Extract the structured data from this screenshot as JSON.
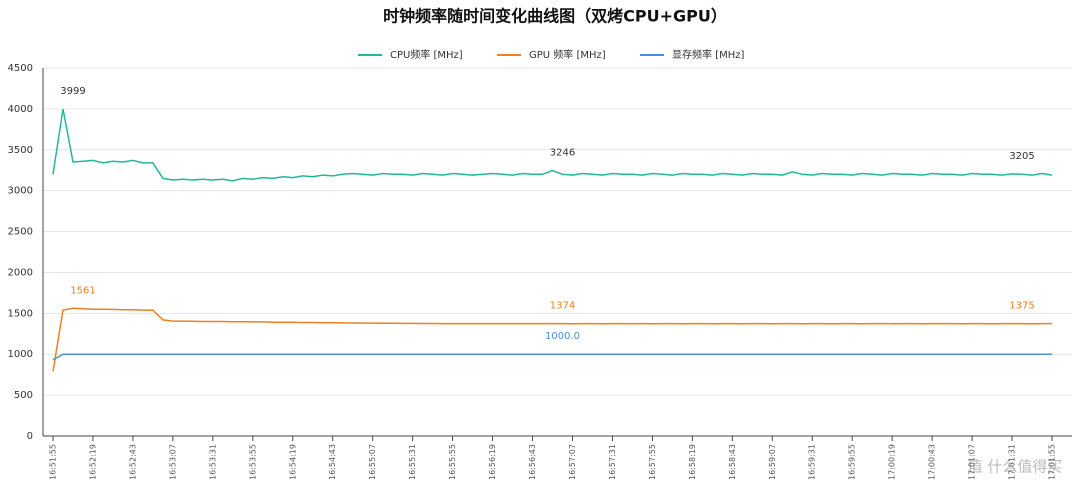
{
  "chart_data": {
    "type": "line",
    "title": "时钟频率随时间变化曲线图（双烤CPU+GPU）",
    "watermark": "值 什么值得买",
    "categories": [
      "16:51:55",
      null,
      null,
      null,
      "16:52:19",
      null,
      null,
      null,
      "16:52:43",
      null,
      null,
      null,
      "16:53:07",
      null,
      null,
      null,
      "16:53:31",
      null,
      null,
      null,
      "16:53:55",
      null,
      null,
      null,
      "16:54:19",
      null,
      null,
      null,
      "16:54:43",
      null,
      null,
      null,
      "16:55:07",
      null,
      null,
      null,
      "16:55:31",
      null,
      null,
      null,
      "16:55:55",
      null,
      null,
      null,
      "16:56:19",
      null,
      null,
      null,
      "16:56:43",
      null,
      null,
      null,
      "16:57:07",
      null,
      null,
      null,
      "16:57:31",
      null,
      null,
      null,
      "16:57:55",
      null,
      null,
      null,
      "16:58:19",
      null,
      null,
      null,
      "16:58:43",
      null,
      null,
      null,
      "16:59:07",
      null,
      null,
      null,
      "16:59:31",
      null,
      null,
      null,
      "16:59:55",
      null,
      null,
      null,
      "17:00:19",
      null,
      null,
      null,
      "17:00:43",
      null,
      null,
      null,
      "17:01:07",
      null,
      null,
      null,
      "17:01:31",
      null,
      null,
      null,
      "17:01:55"
    ],
    "series": [
      {
        "name": "CPU频率 [MHz]",
        "color": "#22b89a",
        "label_color": "#333333",
        "values": [
          3200,
          3999,
          3350,
          3360,
          3370,
          3340,
          3360,
          3350,
          3370,
          3340,
          3340,
          3150,
          3130,
          3140,
          3130,
          3140,
          3130,
          3140,
          3120,
          3150,
          3140,
          3160,
          3150,
          3170,
          3160,
          3180,
          3170,
          3190,
          3180,
          3200,
          3210,
          3200,
          3190,
          3210,
          3200,
          3200,
          3190,
          3210,
          3200,
          3190,
          3210,
          3200,
          3190,
          3200,
          3210,
          3200,
          3190,
          3210,
          3200,
          3200,
          3246,
          3200,
          3190,
          3210,
          3200,
          3190,
          3210,
          3200,
          3200,
          3190,
          3210,
          3200,
          3190,
          3210,
          3200,
          3200,
          3190,
          3210,
          3200,
          3190,
          3210,
          3200,
          3200,
          3190,
          3230,
          3200,
          3190,
          3210,
          3200,
          3200,
          3190,
          3210,
          3200,
          3190,
          3210,
          3200,
          3200,
          3190,
          3210,
          3200,
          3200,
          3190,
          3210,
          3200,
          3200,
          3190,
          3205,
          3200,
          3190,
          3210,
          3190
        ],
        "value_labels": {
          "1": "3999",
          "50": "3246",
          "96": "3205"
        }
      },
      {
        "name": "GPU 频率 [MHz]",
        "color": "#f07f23",
        "label_color": "#f07f23",
        "values": [
          790,
          1540,
          1561,
          1555,
          1550,
          1550,
          1548,
          1545,
          1545,
          1540,
          1540,
          1420,
          1405,
          1405,
          1402,
          1400,
          1400,
          1400,
          1398,
          1398,
          1395,
          1395,
          1392,
          1390,
          1390,
          1388,
          1388,
          1385,
          1385,
          1383,
          1382,
          1380,
          1380,
          1378,
          1378,
          1377,
          1377,
          1376,
          1376,
          1375,
          1375,
          1375,
          1374,
          1374,
          1374,
          1374,
          1374,
          1374,
          1374,
          1374,
          1374,
          1374,
          1373,
          1374,
          1374,
          1373,
          1374,
          1374,
          1373,
          1374,
          1373,
          1374,
          1374,
          1373,
          1374,
          1374,
          1373,
          1374,
          1374,
          1373,
          1374,
          1374,
          1373,
          1374,
          1374,
          1373,
          1374,
          1374,
          1373,
          1374,
          1374,
          1373,
          1374,
          1374,
          1373,
          1374,
          1374,
          1373,
          1374,
          1374,
          1374,
          1373,
          1374,
          1374,
          1373,
          1374,
          1375,
          1374,
          1373,
          1374,
          1374
        ],
        "value_labels": {
          "2": "1561",
          "50": "1374",
          "96": "1375"
        }
      },
      {
        "name": "显存频率 [MHz]",
        "color": "#4a90d9",
        "label_color": "#4a90d9",
        "values": [
          930,
          1000,
          1000,
          1000,
          1000,
          1000,
          1000,
          1000,
          1000,
          1000,
          1000,
          1000,
          1000,
          1000,
          1000,
          1000,
          1000,
          1000,
          1000,
          1000,
          1000,
          1000,
          1000,
          1000,
          1000,
          1000,
          1000,
          1000,
          1000,
          1000,
          1000,
          1000,
          1000,
          1000,
          1000,
          1000,
          1000,
          1000,
          1000,
          1000,
          1000,
          1000,
          1000,
          1000,
          1000,
          1000,
          1000,
          1000,
          1000,
          1000,
          1000,
          1000,
          1000,
          1000,
          1000,
          1000,
          1000,
          1000,
          1000,
          1000,
          1000,
          1000,
          1000,
          1000,
          1000,
          1000,
          1000,
          1000,
          1000,
          1000,
          1000,
          1000,
          1000,
          1000,
          1000,
          1000,
          1000,
          1000,
          1000,
          1000,
          1000,
          1000,
          1000,
          1000,
          1000,
          1000,
          1000,
          1000,
          1000,
          1000,
          1000,
          1000,
          1000,
          1000,
          1000,
          1000,
          1000,
          1000,
          1000,
          1000,
          1000
        ],
        "value_labels": {
          "50": "1000.0"
        }
      }
    ],
    "ylim": [
      0,
      4500
    ],
    "yticks": [
      0,
      500,
      1000,
      1500,
      2000,
      2500,
      3000,
      3500,
      4000,
      4500
    ],
    "grid": true
  }
}
